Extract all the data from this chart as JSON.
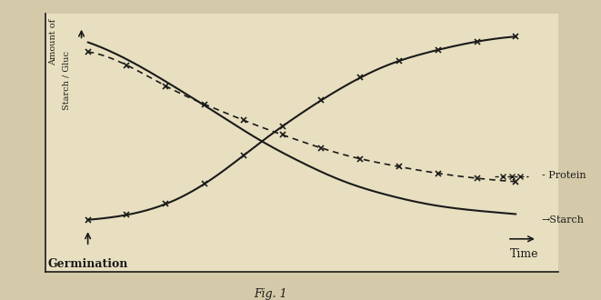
{
  "title": "Fig. 1",
  "ylabel_line1": "Amount of",
  "ylabel_line2": "Starch / Gluc",
  "xlabel": "Time",
  "germination_label": "Germination",
  "x": [
    0,
    1,
    2,
    3,
    4,
    5,
    6,
    7,
    8,
    9,
    10
  ],
  "starch": [
    9.5,
    8.5,
    7.2,
    5.8,
    4.4,
    3.2,
    2.2,
    1.5,
    1.0,
    0.7,
    0.5
  ],
  "protein": [
    9.0,
    8.2,
    7.0,
    6.0,
    5.1,
    4.3,
    3.6,
    3.1,
    2.7,
    2.4,
    2.2
  ],
  "glucose": [
    0.2,
    0.5,
    1.2,
    2.5,
    4.2,
    5.8,
    7.2,
    8.3,
    9.0,
    9.5,
    9.8
  ],
  "starch_color": "#1a1a1a",
  "protein_color": "#1a1a1a",
  "glucose_color": "#1a1a1a",
  "bg_color": "#d4c9a8",
  "plot_bg": "#e8dfc0",
  "legend_protein": "Protein",
  "legend_starch": "Starch",
  "figsize": [
    6.61,
    3.3
  ],
  "dpi": 100
}
